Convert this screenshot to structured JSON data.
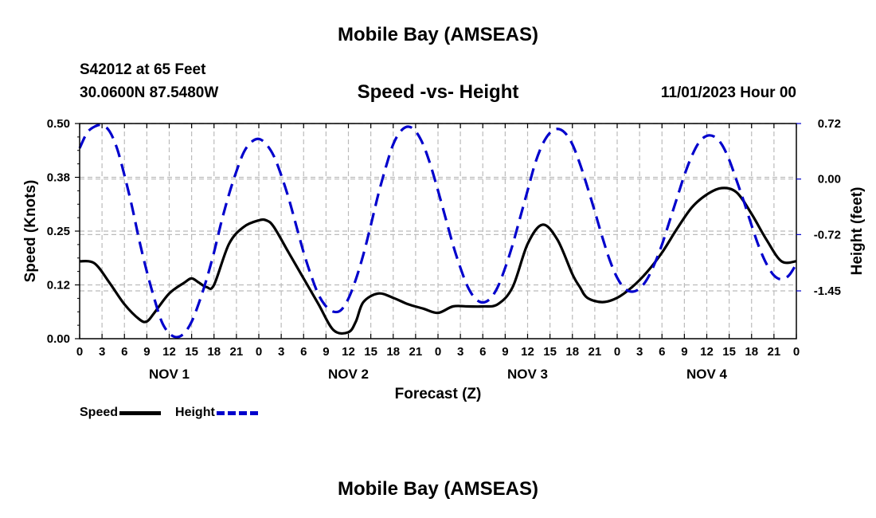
{
  "page": {
    "title": "Mobile Bay (AMSEAS)",
    "station": "S42012 at 65 Feet",
    "coordinates": "30.0600N  87.5480W",
    "subtitle": "Speed -vs- Height",
    "datetime": "11/01/2023 Hour 00",
    "bottom_title": "Mobile Bay (AMSEAS)"
  },
  "chart_data": {
    "type": "line",
    "title": "Speed -vs- Height",
    "xlabel": "Forecast (Z)",
    "ylabel": "Speed (Knots)",
    "y2label": "Height (feet)",
    "xlim": [
      0,
      96
    ],
    "ylim": [
      0,
      0.5
    ],
    "y2lim": [
      -2.07,
      0.72
    ],
    "y_ticks": [
      "0.00",
      "0.12",
      "0.25",
      "0.38",
      "0.50"
    ],
    "y_tick_values": [
      0,
      0.125,
      0.25,
      0.375,
      0.5
    ],
    "y2_ticks": [
      "0.72",
      "0.00",
      "-0.72",
      "-1.45"
    ],
    "y2_tick_values": [
      0.72,
      0,
      -0.72,
      -1.45
    ],
    "x_tick_labels": [
      "0",
      "3",
      "6",
      "9",
      "12",
      "15",
      "18",
      "21",
      "0",
      "3",
      "6",
      "9",
      "12",
      "15",
      "18",
      "21",
      "0",
      "3",
      "6",
      "9",
      "12",
      "15",
      "18",
      "21",
      "0",
      "3",
      "6",
      "9",
      "12",
      "15",
      "18",
      "21",
      "0"
    ],
    "x_tick_hours": [
      0,
      3,
      6,
      9,
      12,
      15,
      18,
      21,
      24,
      27,
      30,
      33,
      36,
      39,
      42,
      45,
      48,
      51,
      54,
      57,
      60,
      63,
      66,
      69,
      72,
      75,
      78,
      81,
      84,
      87,
      90,
      93,
      96
    ],
    "day_labels": [
      "NOV 1",
      "NOV 2",
      "NOV 3",
      "NOV 4"
    ],
    "day_label_hours": [
      12,
      36,
      60,
      84
    ],
    "grid": true,
    "legend": "bottom-left",
    "series": [
      {
        "name": "Speed",
        "axis": "left",
        "color": "#000000",
        "style": "solid",
        "x": [
          0,
          2,
          4,
          6,
          8,
          9,
          10,
          12,
          14,
          15,
          16,
          17,
          18,
          20,
          22,
          24,
          25,
          26,
          28,
          30,
          32,
          34,
          36,
          37,
          38,
          40,
          42,
          44,
          46,
          48,
          50,
          52,
          54,
          56,
          58,
          60,
          62,
          64,
          66,
          67,
          68,
          70,
          72,
          74,
          76,
          78,
          80,
          82,
          84,
          86,
          88,
          90,
          92,
          94,
          96
        ],
        "values": [
          0.18,
          0.175,
          0.13,
          0.08,
          0.045,
          0.04,
          0.06,
          0.105,
          0.13,
          0.14,
          0.13,
          0.12,
          0.125,
          0.22,
          0.26,
          0.275,
          0.275,
          0.26,
          0.2,
          0.14,
          0.08,
          0.02,
          0.015,
          0.04,
          0.085,
          0.105,
          0.095,
          0.08,
          0.07,
          0.06,
          0.075,
          0.075,
          0.075,
          0.08,
          0.12,
          0.22,
          0.265,
          0.23,
          0.15,
          0.12,
          0.095,
          0.085,
          0.095,
          0.12,
          0.155,
          0.2,
          0.255,
          0.305,
          0.335,
          0.35,
          0.34,
          0.29,
          0.23,
          0.18,
          0.18
        ],
        "values_note": "Speed in knots, sampled at forecast hours x"
      },
      {
        "name": "Height",
        "axis": "right",
        "color": "#0000cc",
        "style": "dashed",
        "x": [
          0,
          1,
          2,
          3,
          4,
          5,
          6,
          7,
          8,
          9,
          10,
          11,
          12,
          13,
          14,
          15,
          16,
          17,
          18,
          19,
          20,
          21,
          22,
          23,
          24,
          25,
          26,
          27,
          28,
          29,
          30,
          31,
          32,
          33,
          34,
          35,
          36,
          37,
          38,
          39,
          40,
          41,
          42,
          43,
          44,
          45,
          46,
          47,
          48,
          49,
          50,
          51,
          52,
          53,
          54,
          55,
          56,
          57,
          58,
          59,
          60,
          61,
          62,
          63,
          64,
          65,
          66,
          67,
          68,
          69,
          70,
          71,
          72,
          73,
          74,
          75,
          76,
          77,
          78,
          79,
          80,
          81,
          82,
          83,
          84,
          85,
          86,
          87,
          88,
          89,
          90,
          91,
          92,
          93,
          94,
          95,
          96
        ],
        "values": [
          0.4,
          0.6,
          0.68,
          0.7,
          0.62,
          0.4,
          0.05,
          -0.35,
          -0.8,
          -1.2,
          -1.55,
          -1.85,
          -2.0,
          -2.05,
          -2.0,
          -1.85,
          -1.6,
          -1.3,
          -0.95,
          -0.55,
          -0.2,
          0.1,
          0.35,
          0.48,
          0.52,
          0.45,
          0.3,
          0.05,
          -0.25,
          -0.6,
          -0.95,
          -1.25,
          -1.5,
          -1.65,
          -1.72,
          -1.7,
          -1.55,
          -1.3,
          -0.98,
          -0.6,
          -0.2,
          0.15,
          0.45,
          0.62,
          0.68,
          0.62,
          0.45,
          0.18,
          -0.15,
          -0.5,
          -0.85,
          -1.15,
          -1.4,
          -1.55,
          -1.6,
          -1.55,
          -1.4,
          -1.15,
          -0.85,
          -0.5,
          -0.15,
          0.2,
          0.45,
          0.6,
          0.65,
          0.6,
          0.45,
          0.2,
          -0.1,
          -0.42,
          -0.75,
          -1.05,
          -1.28,
          -1.42,
          -1.46,
          -1.42,
          -1.3,
          -1.1,
          -0.85,
          -0.55,
          -0.25,
          0.05,
          0.3,
          0.48,
          0.56,
          0.55,
          0.45,
          0.25,
          -0.02,
          -0.3,
          -0.6,
          -0.88,
          -1.1,
          -1.25,
          -1.3,
          -1.25,
          -1.1
        ],
        "values_note": "Height in feet, sampled at forecast hours x"
      }
    ]
  }
}
